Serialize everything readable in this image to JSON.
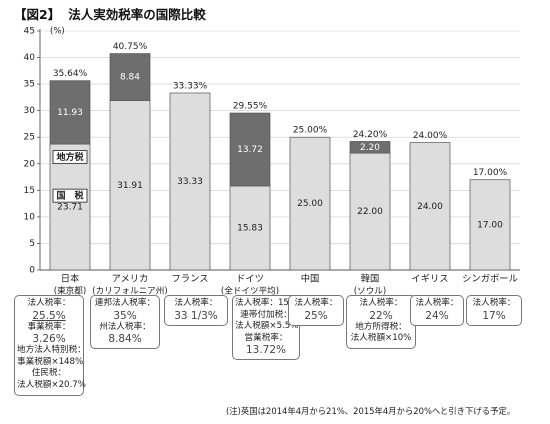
{
  "title": {
    "bracket": "【図2】",
    "text": "法人実効税率の国際比較"
  },
  "chart_data": {
    "type": "bar",
    "stacked": true,
    "y_unit": "(%)",
    "ylim": [
      0,
      45
    ],
    "y_ticks": [
      "0",
      "5",
      "10",
      "15",
      "20",
      "25",
      "30",
      "35",
      "40",
      "45"
    ],
    "categories": [
      {
        "name": "日本",
        "sub": "(東京都)"
      },
      {
        "name": "アメリカ",
        "sub": "(カリフォルニア州)"
      },
      {
        "name": "フランス",
        "sub": ""
      },
      {
        "name": "ドイツ",
        "sub": "(全ドイツ平均)"
      },
      {
        "name": "中国",
        "sub": ""
      },
      {
        "name": "韓国",
        "sub": "(ソウル)"
      },
      {
        "name": "イギリス",
        "sub": ""
      },
      {
        "name": "シンガポール",
        "sub": ""
      }
    ],
    "totals": [
      35.64,
      40.75,
      33.33,
      29.55,
      25.0,
      24.2,
      24.0,
      17.0
    ],
    "total_labels": [
      "35.64%",
      "40.75%",
      "33.33%",
      "29.55%",
      "25.00%",
      "24.20%",
      "24.00%",
      "17.00%"
    ],
    "segments": [
      [
        {
          "value": 23.71,
          "label": "23.71",
          "dark": false
        },
        {
          "value": 11.93,
          "label": "11.93",
          "dark": true
        }
      ],
      [
        {
          "value": 31.91,
          "label": "31.91",
          "dark": false
        },
        {
          "value": 8.84,
          "label": "8.84",
          "dark": true
        }
      ],
      [
        {
          "value": 33.33,
          "label": "33.33",
          "dark": false
        }
      ],
      [
        {
          "value": 15.83,
          "label": "15.83",
          "dark": false
        },
        {
          "value": 13.72,
          "label": "13.72",
          "dark": true
        }
      ],
      [
        {
          "value": 25.0,
          "label": "25.00",
          "dark": false
        }
      ],
      [
        {
          "value": 22.0,
          "label": "22.00",
          "dark": false
        },
        {
          "value": 2.2,
          "label": "2.20",
          "dark": true
        }
      ],
      [
        {
          "value": 24.0,
          "label": "24.00",
          "dark": false
        }
      ],
      [
        {
          "value": 17.0,
          "label": "17.00",
          "dark": false
        }
      ]
    ],
    "annotations": {
      "local_tax": "地方税",
      "national_tax": "国　税"
    },
    "colors": {
      "light": "#dddddd",
      "dark": "#6e6e6e",
      "axis": "#555555",
      "grid": "#cccccc",
      "text_dark": "#ffffff"
    }
  },
  "notes": {
    "japan": [
      "法人税率：",
      "25.5%",
      "事業税率：",
      "3.26%",
      "地方法人特別税：",
      "事業税額×148%",
      "住民税：",
      "法人税額×20.7%"
    ],
    "usa": [
      "連邦法人税率：",
      "35%",
      "州法人税率：",
      "8.84%"
    ],
    "france": [
      "法人税率：",
      "33 1/3%"
    ],
    "germany": [
      "法人税率：15%",
      "連帯付加税：",
      "法人税額×5.5%",
      "営業税率：",
      "13.72%"
    ],
    "china": [
      "法人税率：",
      "25%"
    ],
    "korea": [
      "法人税率：",
      "22%",
      "地方所得税：",
      "法人税額×10%"
    ],
    "uk": [
      "法人税率：",
      "24%"
    ],
    "singapore": [
      "法人税率：",
      "17%"
    ]
  },
  "footnote": "(注)英国は2014年4月から21%、2015年4月から20%へと引き下げる予定。"
}
